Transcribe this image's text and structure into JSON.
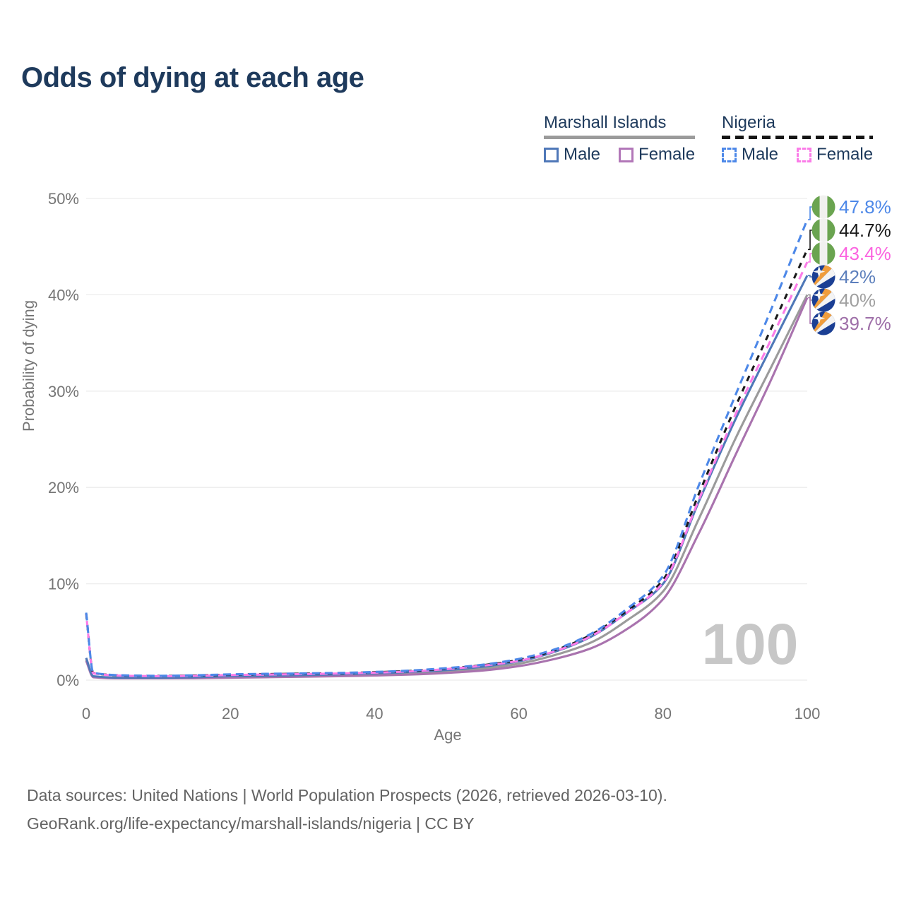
{
  "title": "Odds of dying at each age",
  "legend": {
    "groups": [
      {
        "name": "Marshall Islands",
        "underline_style": "solid",
        "underline_color": "#9b9b9b",
        "items": [
          {
            "label": "Male",
            "color": "#4f78b8",
            "dash": false
          },
          {
            "label": "Female",
            "color": "#b277b8",
            "dash": false
          }
        ]
      },
      {
        "name": "Nigeria",
        "underline_style": "dashed",
        "underline_color": "#151515",
        "items": [
          {
            "label": "Male",
            "color": "#4d88e8",
            "dash": true
          },
          {
            "label": "Female",
            "color": "#fb7ce8",
            "dash": true
          }
        ]
      }
    ]
  },
  "chart_data": {
    "type": "line",
    "title": "Odds of dying at each age",
    "xlabel": "Age",
    "ylabel": "Probability of dying",
    "xlim": [
      0,
      100
    ],
    "ylim": [
      0,
      50
    ],
    "x_ticks": [
      0,
      20,
      40,
      60,
      80,
      100
    ],
    "y_tick_labels": [
      "0%",
      "10%",
      "20%",
      "30%",
      "40%",
      "50%"
    ],
    "grid": "horizontal",
    "legend_position": "top-right",
    "watermark": "100",
    "ages": [
      0,
      1,
      5,
      10,
      15,
      20,
      25,
      30,
      35,
      40,
      45,
      50,
      55,
      60,
      65,
      70,
      75,
      80,
      85,
      90,
      95,
      100
    ],
    "series": [
      {
        "name": "Nigeria Male",
        "country": "nigeria",
        "sex": "Male",
        "color": "#4d88e8",
        "label_color": "#4d88e8",
        "dash": true,
        "end_label": "47.8%",
        "values": [
          7.0,
          0.75,
          0.5,
          0.45,
          0.5,
          0.6,
          0.65,
          0.7,
          0.75,
          0.85,
          1.0,
          1.25,
          1.6,
          2.2,
          3.2,
          4.8,
          7.4,
          10.8,
          20.3,
          29.5,
          38.5,
          47.8
        ]
      },
      {
        "name": "Nigeria Both sexes",
        "country": "nigeria",
        "sex": "Both",
        "color": "#1a1a1a",
        "label_color": "#1a1a1a",
        "dash": true,
        "end_label": "44.7%",
        "values": [
          6.9,
          0.72,
          0.48,
          0.43,
          0.47,
          0.57,
          0.62,
          0.67,
          0.72,
          0.82,
          0.95,
          1.2,
          1.55,
          2.1,
          3.1,
          4.7,
          7.2,
          10.4,
          19.4,
          28.3,
          36.5,
          44.7
        ]
      },
      {
        "name": "Nigeria Female",
        "country": "nigeria",
        "sex": "Female",
        "color": "#fb7ce8",
        "label_color": "#fb64e0",
        "dash": true,
        "end_label": "43.4%",
        "values": [
          6.8,
          0.7,
          0.46,
          0.41,
          0.44,
          0.53,
          0.58,
          0.63,
          0.68,
          0.78,
          0.9,
          1.15,
          1.5,
          2.0,
          3.0,
          4.55,
          7.0,
          10.1,
          18.8,
          27.5,
          35.4,
          43.4
        ]
      },
      {
        "name": "Marshall Islands Male",
        "country": "marshall-islands",
        "sex": "Male",
        "color": "#4f78b8",
        "label_color": "#5c7fbc",
        "dash": false,
        "end_label": "42%",
        "values": [
          2.3,
          0.4,
          0.25,
          0.25,
          0.3,
          0.4,
          0.45,
          0.52,
          0.6,
          0.7,
          0.85,
          1.05,
          1.4,
          1.95,
          2.95,
          4.5,
          7.0,
          10.0,
          18.6,
          27.0,
          34.6,
          42.0
        ]
      },
      {
        "name": "Marshall Islands Both sexes",
        "country": "marshall-islands",
        "sex": "Both",
        "color": "#9b9b9b",
        "label_color": "#a0a0a0",
        "dash": false,
        "end_label": "40%",
        "values": [
          2.15,
          0.35,
          0.22,
          0.22,
          0.26,
          0.33,
          0.38,
          0.44,
          0.5,
          0.6,
          0.72,
          0.9,
          1.2,
          1.7,
          2.6,
          3.9,
          6.2,
          9.2,
          16.8,
          25.0,
          32.5,
          40.0
        ]
      },
      {
        "name": "Marshall Islands Female",
        "country": "marshall-islands",
        "sex": "Female",
        "color": "#a973ae",
        "label_color": "#9e6fa8",
        "dash": false,
        "end_label": "39.7%",
        "values": [
          2.0,
          0.3,
          0.18,
          0.18,
          0.2,
          0.25,
          0.3,
          0.35,
          0.4,
          0.48,
          0.58,
          0.75,
          1.0,
          1.45,
          2.2,
          3.3,
          5.3,
          8.4,
          15.3,
          23.3,
          31.2,
          39.7
        ]
      }
    ]
  },
  "axis": {
    "xlabel": "Age",
    "ylabel": "Probability of dying",
    "tick_color": "#757575",
    "grid_color": "#ececec"
  },
  "watermark": {
    "text": "100",
    "color": "#c7c7c7"
  },
  "flag_colors": {
    "nigeria_green": "#6aa450",
    "nigeria_white": "#f1f1ef",
    "marshall_blue": "#1b3f94",
    "marshall_orange": "#f09d3c",
    "marshall_white": "#f4f4f4"
  },
  "footer": {
    "line1": "Data sources: United Nations | World Population Prospects (2026, retrieved 2026-03-10).",
    "line2": "GeoRank.org/life-expectancy/marshall-islands/nigeria | CC BY"
  }
}
